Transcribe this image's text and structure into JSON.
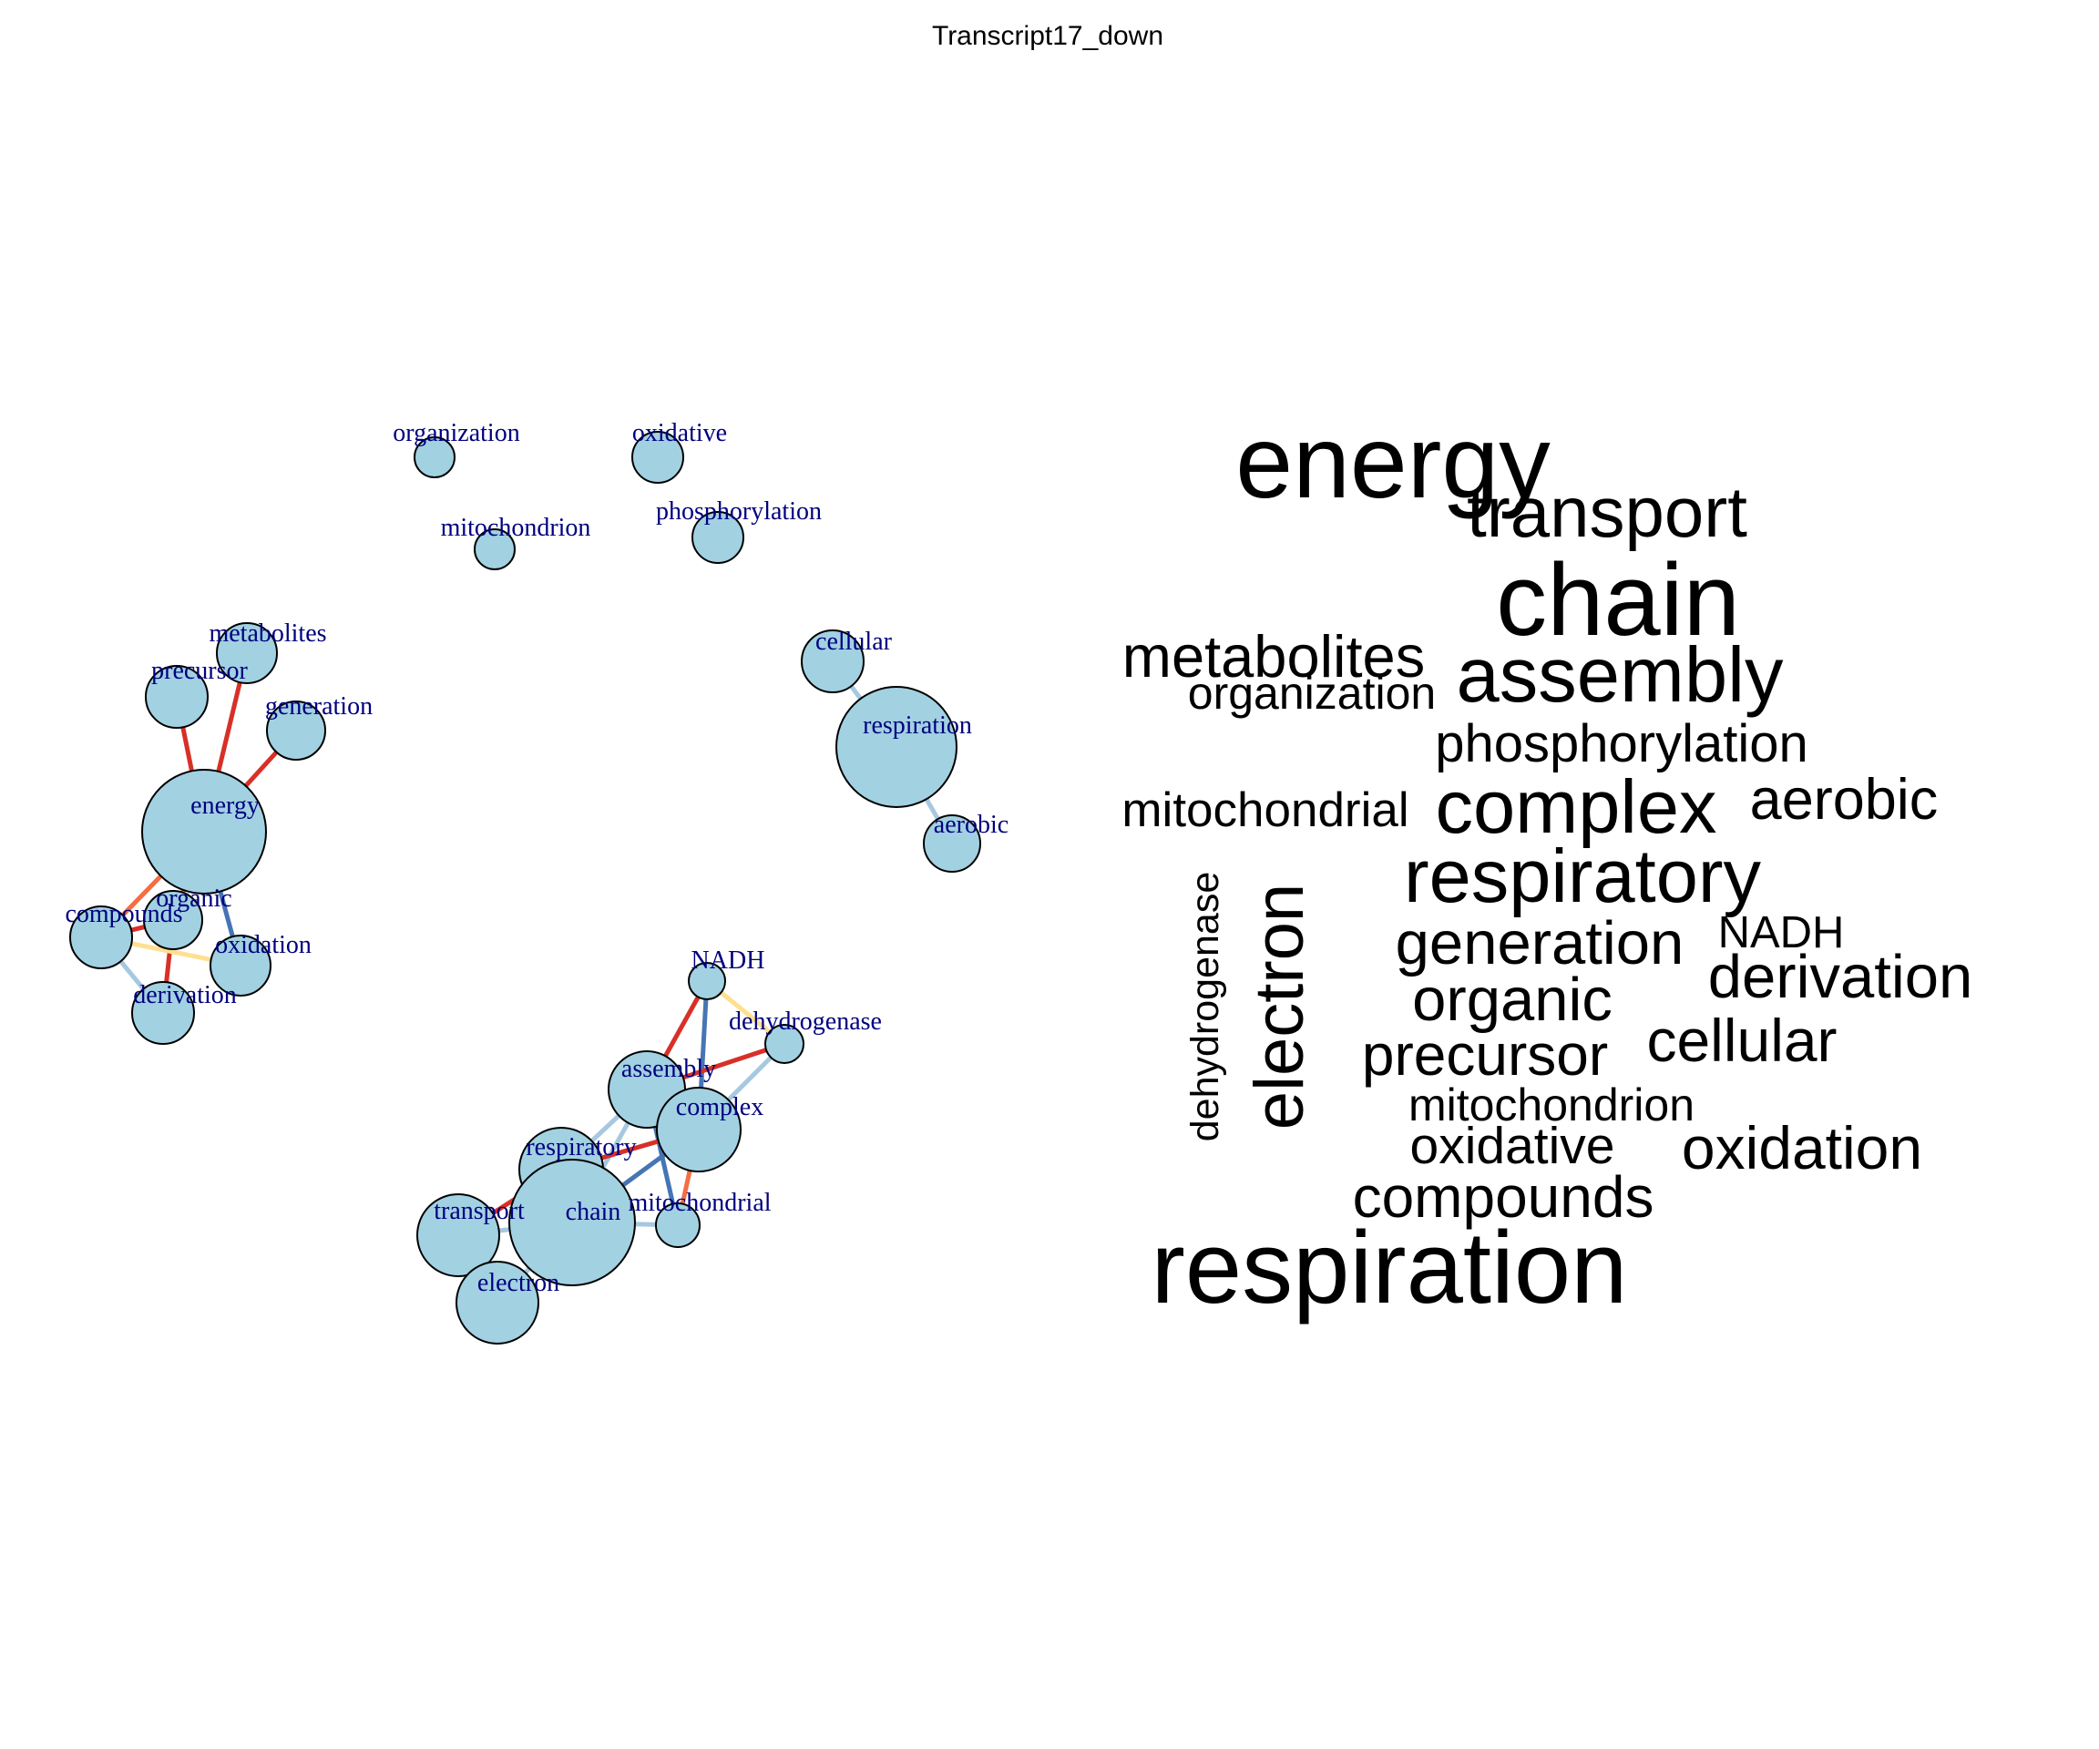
{
  "title": "Transcript17_down",
  "network": {
    "nodes": [
      {
        "id": "organization",
        "label": "organization"
      },
      {
        "id": "oxidative",
        "label": "oxidative"
      },
      {
        "id": "mitochondrion",
        "label": "mitochondrion"
      },
      {
        "id": "phosphorylation",
        "label": "phosphorylation"
      },
      {
        "id": "metabolites",
        "label": "metabolites"
      },
      {
        "id": "precursor",
        "label": "precursor"
      },
      {
        "id": "generation",
        "label": "generation"
      },
      {
        "id": "energy",
        "label": "energy"
      },
      {
        "id": "compounds",
        "label": "compounds"
      },
      {
        "id": "organic",
        "label": "organic"
      },
      {
        "id": "oxidation",
        "label": "oxidation"
      },
      {
        "id": "derivation",
        "label": "derivation"
      },
      {
        "id": "cellular",
        "label": "cellular"
      },
      {
        "id": "respiration",
        "label": "respiration"
      },
      {
        "id": "aerobic",
        "label": "aerobic"
      },
      {
        "id": "NADH",
        "label": "NADH"
      },
      {
        "id": "dehydrogenase",
        "label": "dehydrogenase"
      },
      {
        "id": "assembly",
        "label": "assembly"
      },
      {
        "id": "complex",
        "label": "complex"
      },
      {
        "id": "respiratory",
        "label": "respiratory"
      },
      {
        "id": "transport",
        "label": "transport"
      },
      {
        "id": "chain",
        "label": "chain"
      },
      {
        "id": "mitochondrial",
        "label": "mitochondrial"
      },
      {
        "id": "electron",
        "label": "electron"
      }
    ],
    "edge_colors": {
      "red": "#d73027",
      "orange": "#f46d43",
      "yellow": "#fee090",
      "lightblue": "#a6c8e0",
      "blue": "#4575b4"
    },
    "edges": [
      {
        "source": "energy",
        "target": "metabolites",
        "color": "red"
      },
      {
        "source": "energy",
        "target": "precursor",
        "color": "red"
      },
      {
        "source": "energy",
        "target": "generation",
        "color": "red"
      },
      {
        "source": "energy",
        "target": "compounds",
        "color": "orange"
      },
      {
        "source": "energy",
        "target": "organic",
        "color": "orange"
      },
      {
        "source": "energy",
        "target": "oxidation",
        "color": "blue"
      },
      {
        "source": "compounds",
        "target": "organic",
        "color": "red"
      },
      {
        "source": "compounds",
        "target": "derivation",
        "color": "lightblue"
      },
      {
        "source": "organic",
        "target": "derivation",
        "color": "red"
      },
      {
        "source": "compounds",
        "target": "oxidation",
        "color": "yellow"
      },
      {
        "source": "cellular",
        "target": "respiration",
        "color": "lightblue"
      },
      {
        "source": "respiration",
        "target": "aerobic",
        "color": "lightblue"
      },
      {
        "source": "NADH",
        "target": "dehydrogenase",
        "color": "yellow"
      },
      {
        "source": "NADH",
        "target": "assembly",
        "color": "red"
      },
      {
        "source": "NADH",
        "target": "complex",
        "color": "blue"
      },
      {
        "source": "assembly",
        "target": "dehydrogenase",
        "color": "red"
      },
      {
        "source": "complex",
        "target": "dehydrogenase",
        "color": "lightblue"
      },
      {
        "source": "assembly",
        "target": "respiratory",
        "color": "lightblue"
      },
      {
        "source": "assembly",
        "target": "chain",
        "color": "lightblue"
      },
      {
        "source": "assembly",
        "target": "mitochondrial",
        "color": "blue"
      },
      {
        "source": "complex",
        "target": "respiratory",
        "color": "red"
      },
      {
        "source": "complex",
        "target": "chain",
        "color": "blue"
      },
      {
        "source": "complex",
        "target": "mitochondrial",
        "color": "orange"
      },
      {
        "source": "respiratory",
        "target": "transport",
        "color": "red"
      },
      {
        "source": "respiratory",
        "target": "chain",
        "color": "lightblue"
      },
      {
        "source": "chain",
        "target": "transport",
        "color": "lightblue"
      },
      {
        "source": "chain",
        "target": "electron",
        "color": "lightblue"
      },
      {
        "source": "chain",
        "target": "mitochondrial",
        "color": "lightblue"
      },
      {
        "source": "transport",
        "target": "electron",
        "color": "lightblue"
      }
    ]
  },
  "wordcloud": {
    "words": [
      {
        "text": "energy"
      },
      {
        "text": "transport"
      },
      {
        "text": "chain"
      },
      {
        "text": "metabolites"
      },
      {
        "text": "assembly"
      },
      {
        "text": "organization"
      },
      {
        "text": "phosphorylation"
      },
      {
        "text": "mitochondrial"
      },
      {
        "text": "complex"
      },
      {
        "text": "aerobic"
      },
      {
        "text": "dehydrogenase"
      },
      {
        "text": "electron"
      },
      {
        "text": "respiratory"
      },
      {
        "text": "generation"
      },
      {
        "text": "NADH"
      },
      {
        "text": "derivation"
      },
      {
        "text": "organic"
      },
      {
        "text": "precursor"
      },
      {
        "text": "cellular"
      },
      {
        "text": "mitochondrion"
      },
      {
        "text": "oxidative"
      },
      {
        "text": "oxidation"
      },
      {
        "text": "compounds"
      },
      {
        "text": "respiration"
      }
    ]
  }
}
